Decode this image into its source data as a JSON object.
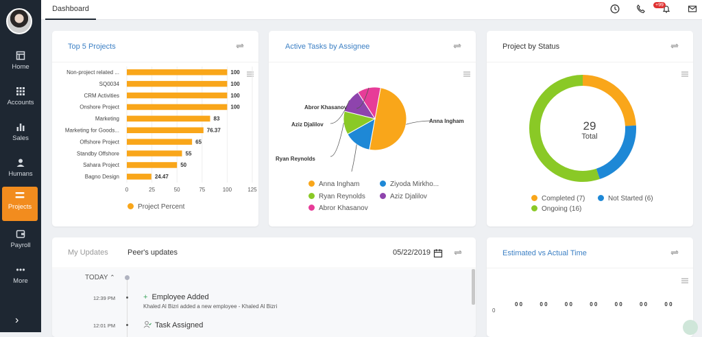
{
  "sidebar": {
    "items": [
      {
        "label": "Home",
        "icon": "home-icon"
      },
      {
        "label": "Accounts",
        "icon": "grid-icon"
      },
      {
        "label": "Sales",
        "icon": "bar-chart-icon"
      },
      {
        "label": "Humans",
        "icon": "user-icon"
      },
      {
        "label": "Projects",
        "icon": "projects-icon",
        "active": true
      },
      {
        "label": "Payroll",
        "icon": "wallet-icon"
      },
      {
        "label": "More",
        "icon": "more-icon"
      }
    ],
    "toggle": "›"
  },
  "topbar": {
    "tab": "Dashboard",
    "notification_badge": "+99"
  },
  "cards": {
    "top5": {
      "title": "Top 5 Projects",
      "legend": "Project Percent"
    },
    "assignee": {
      "title": "Active Tasks by Assignee"
    },
    "status": {
      "title": "Project by Status",
      "center_value": "29",
      "center_label": "Total"
    },
    "updates": {
      "tab_mine": "My Updates",
      "tab_peer": "Peer's updates",
      "date": "05/22/2019",
      "today": "TODAY",
      "events": [
        {
          "time": "12:39 PM",
          "title": "Employee Added",
          "desc": "Khaled Al Bizri added a new employee - Khaled Al Bizri"
        },
        {
          "time": "12:01 PM",
          "title": "Task Assigned",
          "desc": ""
        }
      ]
    },
    "estimate": {
      "title": "Estimated vs Actual Time",
      "zero_label": "0",
      "pairs": [
        "0",
        "0",
        "0",
        "0",
        "0",
        "0",
        "0",
        "0",
        "0",
        "0",
        "0",
        "0",
        "0",
        "0"
      ]
    }
  },
  "colors": {
    "orange": "#f9a61a",
    "blue": "#1e88d6",
    "green": "#8ac926",
    "purple": "#8e44ad",
    "pink": "#e73c98",
    "link": "#3b7fc4"
  },
  "chart_data": [
    {
      "type": "bar",
      "orientation": "horizontal",
      "title": "Top 5 Projects",
      "categories": [
        "Non-project related ...",
        "SQ0034",
        "CRM Activities",
        "Onshore Project",
        "Marketing",
        "Marketing for Goods...",
        "Offshore Project",
        "Standby Offshore",
        "Sahara Project",
        "Bagno Design"
      ],
      "series": [
        {
          "name": "Project Percent",
          "values": [
            100,
            100,
            100,
            100,
            83,
            76.37,
            65,
            55,
            50,
            24.47
          ]
        }
      ],
      "value_labels": [
        "100",
        "100",
        "100",
        "100",
        "83",
        "76.37",
        "65",
        "55",
        "50",
        "24.47"
      ],
      "xticks": [
        "0",
        "25",
        "50",
        "75",
        "100",
        "125"
      ],
      "xlim": [
        0,
        125
      ],
      "grid": true,
      "legend": "bottom"
    },
    {
      "type": "pie",
      "title": "Active Tasks by Assignee",
      "labels": [
        "Anna Ingham",
        "Ziyoda Mirkhonova",
        "Ryan Reynolds",
        "Aziz Djalilov",
        "Abror Khasanov"
      ],
      "legend_labels": [
        "Anna Ingham",
        "Ziyoda Mirkho...",
        "Ryan Reynolds",
        "Aziz Djalilov",
        "Abror Khasanov"
      ],
      "values": [
        50,
        14,
        12,
        12,
        12
      ],
      "colors": [
        "#f9a61a",
        "#1e88d6",
        "#8ac926",
        "#8e44ad",
        "#e73c98"
      ],
      "legend": "bottom"
    },
    {
      "type": "pie",
      "subtype": "donut",
      "title": "Project by Status",
      "labels": [
        "Completed",
        "Ongoing",
        "Not Started"
      ],
      "legend_labels": [
        "Completed (7)",
        "Not Started (6)",
        "Ongoing (16)"
      ],
      "values": [
        7,
        16,
        6
      ],
      "colors": [
        "#f9a61a",
        "#8ac926",
        "#1e88d6"
      ],
      "legend": "bottom"
    }
  ]
}
